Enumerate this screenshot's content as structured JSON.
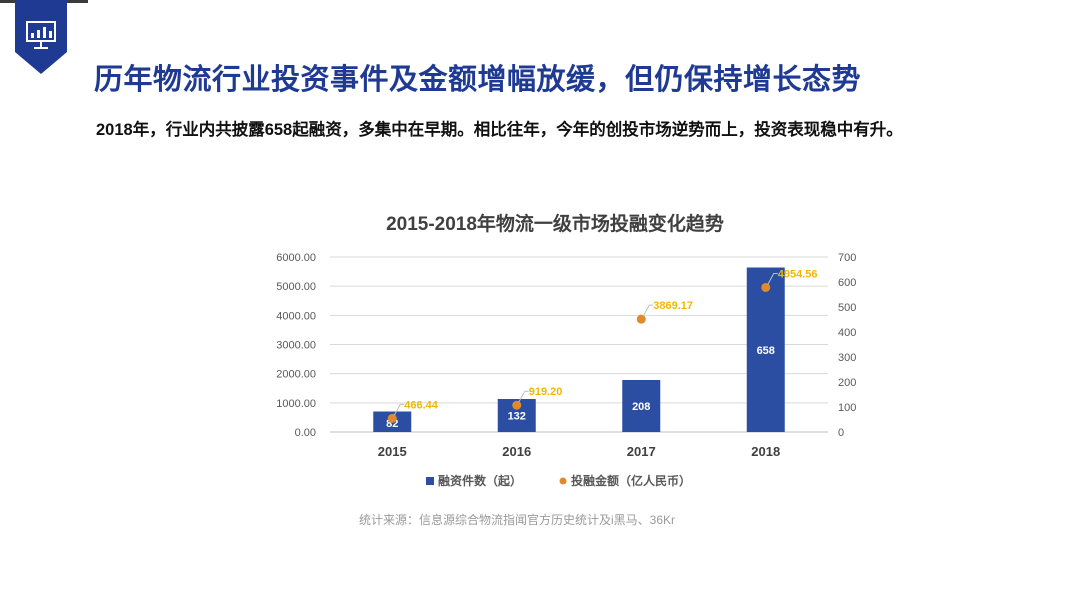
{
  "header": {
    "title": "历年物流行业投资事件及金额增幅放缓，但仍保持增长态势",
    "subtitle": "2018年，行业内共披露658起融资，多集中在早期。相比往年，今年的创投市场逆势而上，投资表现稳中有升。"
  },
  "badge_icon": "presentation-chart-icon",
  "colors": {
    "brand": "#1f3a93",
    "bar": "#2b4ea3",
    "dot": "#e08a2c",
    "dot_label": "#f2b705",
    "axis_text": "#595959"
  },
  "chart_data": {
    "type": "bar",
    "title": "2015-2018年物流一级市场投融变化趋势",
    "categories": [
      "2015",
      "2016",
      "2017",
      "2018"
    ],
    "series": [
      {
        "name": "融资件数（起）",
        "kind": "bar",
        "axis": "right",
        "values": [
          82,
          132,
          208,
          658
        ],
        "labels": [
          "82",
          "132",
          "208",
          "658"
        ]
      },
      {
        "name": "投融金额（亿人民币）",
        "kind": "scatter",
        "axis": "left",
        "values": [
          466.44,
          919.2,
          3869.17,
          4954.56
        ],
        "labels": [
          "466.44",
          "919.20",
          "3869.17",
          "4954.56"
        ]
      }
    ],
    "y_left": {
      "ylim": [
        0,
        6000
      ],
      "ticks": [
        "0.00",
        "1000.00",
        "2000.00",
        "3000.00",
        "4000.00",
        "5000.00",
        "6000.00"
      ]
    },
    "y_right": {
      "ylim": [
        0,
        700
      ],
      "ticks": [
        "0",
        "100",
        "200",
        "300",
        "400",
        "500",
        "600",
        "700"
      ]
    },
    "grid": true,
    "legend_position": "bottom"
  },
  "source_note": "统计来源：信息源综合物流指闻官方历史统计及i黑马、36Kr"
}
